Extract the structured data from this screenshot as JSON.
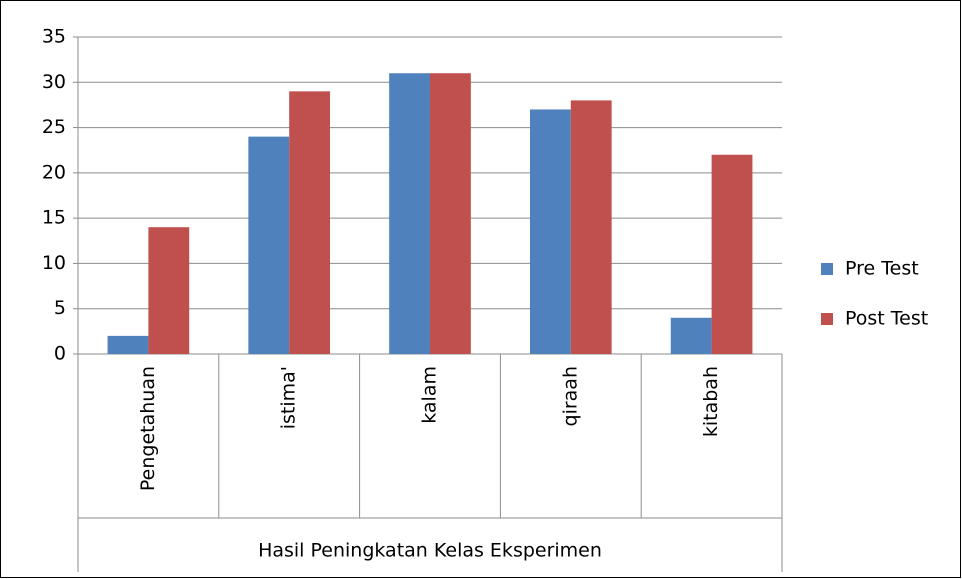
{
  "chart_data": {
    "type": "bar",
    "categories": [
      "Pengetahuan",
      "istima'",
      "kalam",
      "qiraah",
      "kitabah"
    ],
    "category_group_label": "Hasil Peningkatan Kelas Eksperimen",
    "series": [
      {
        "name": "Pre Test",
        "color": "#4f81bd",
        "values": [
          2,
          24,
          31,
          27,
          4
        ]
      },
      {
        "name": "Post Test",
        "color": "#c0504d",
        "values": [
          14,
          29,
          31,
          28,
          22
        ]
      }
    ],
    "ylim": [
      0,
      35
    ],
    "yticks": [
      0,
      5,
      10,
      15,
      20,
      25,
      30,
      35
    ],
    "grid": true,
    "legend": "right"
  }
}
